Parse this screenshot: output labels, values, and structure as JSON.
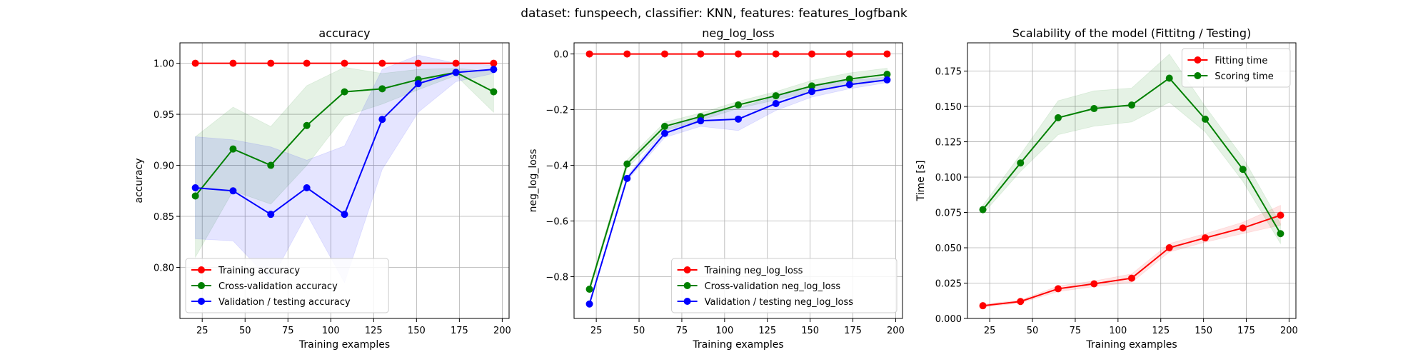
{
  "figure": {
    "suptitle": "dataset: funspeech, classifier: KNN, features: features_logfbank"
  },
  "chart_data": [
    {
      "type": "line",
      "title": "accuracy",
      "xlabel": "Training examples",
      "ylabel": "accuracy",
      "xlim": [
        12,
        204
      ],
      "ylim": [
        0.75,
        1.02
      ],
      "xticks": [
        "25",
        "50",
        "75",
        "100",
        "125",
        "150",
        "175",
        "200"
      ],
      "yticks": [
        "0.80",
        "0.85",
        "0.90",
        "0.95",
        "1.00"
      ],
      "grid": true,
      "legend_position": "lower-left",
      "x": [
        21,
        43,
        65,
        86,
        108,
        130,
        151,
        173,
        195
      ],
      "series": [
        {
          "name": "Training accuracy",
          "color": "#ff0000",
          "values": [
            1.0,
            1.0,
            1.0,
            1.0,
            1.0,
            1.0,
            1.0,
            1.0,
            1.0
          ],
          "band_lower": [
            1.0,
            1.0,
            1.0,
            1.0,
            1.0,
            1.0,
            1.0,
            1.0,
            1.0
          ],
          "band_upper": [
            1.0,
            1.0,
            1.0,
            1.0,
            1.0,
            1.0,
            1.0,
            1.0,
            1.0
          ]
        },
        {
          "name": "Cross-validation accuracy",
          "color": "#008000",
          "values": [
            0.87,
            0.916,
            0.9,
            0.939,
            0.972,
            0.975,
            0.984,
            0.991,
            0.972
          ],
          "band_lower": [
            0.81,
            0.875,
            0.862,
            0.9,
            0.948,
            0.96,
            0.974,
            0.988,
            0.952
          ],
          "band_upper": [
            0.928,
            0.957,
            0.938,
            0.978,
            0.996,
            0.99,
            0.994,
            0.995,
            0.992
          ]
        },
        {
          "name": "Validation / testing accuracy",
          "color": "#0000ff",
          "values": [
            0.878,
            0.875,
            0.852,
            0.878,
            0.852,
            0.945,
            0.98,
            0.991,
            0.994
          ],
          "band_lower": [
            0.828,
            0.826,
            0.787,
            0.852,
            0.785,
            0.896,
            0.952,
            0.982,
            0.99
          ],
          "band_upper": [
            0.928,
            0.925,
            0.918,
            0.905,
            0.919,
            0.994,
            1.008,
            1.0,
            0.998
          ]
        }
      ]
    },
    {
      "type": "line",
      "title": "neg_log_loss",
      "xlabel": "Training examples",
      "ylabel": "neg_log_loss",
      "xlim": [
        12,
        204
      ],
      "ylim": [
        -0.95,
        0.04
      ],
      "xticks": [
        "25",
        "50",
        "75",
        "100",
        "125",
        "150",
        "175",
        "200"
      ],
      "yticks": [
        "−0.8",
        "−0.6",
        "−0.4",
        "−0.2",
        "0.0"
      ],
      "grid": true,
      "legend_position": "lower-right",
      "x": [
        21,
        43,
        65,
        86,
        108,
        130,
        151,
        173,
        195
      ],
      "series": [
        {
          "name": "Training neg_log_loss",
          "color": "#ff0000",
          "values": [
            0.0,
            0.0,
            0.0,
            0.0,
            0.0,
            0.0,
            0.0,
            0.0,
            0.0
          ],
          "band_lower": [
            0.0,
            0.0,
            0.0,
            0.0,
            0.0,
            0.0,
            0.0,
            0.0,
            0.0
          ],
          "band_upper": [
            0.0,
            0.0,
            0.0,
            0.0,
            0.0,
            0.0,
            0.0,
            0.0,
            0.0
          ]
        },
        {
          "name": "Cross-validation neg_log_loss",
          "color": "#008000",
          "values": [
            -0.845,
            -0.395,
            -0.26,
            -0.225,
            -0.183,
            -0.15,
            -0.115,
            -0.09,
            -0.073
          ],
          "band_lower": [
            -0.855,
            -0.41,
            -0.275,
            -0.238,
            -0.196,
            -0.165,
            -0.135,
            -0.112,
            -0.095
          ],
          "band_upper": [
            -0.835,
            -0.38,
            -0.245,
            -0.212,
            -0.17,
            -0.135,
            -0.095,
            -0.068,
            -0.051
          ]
        },
        {
          "name": "Validation / testing neg_log_loss",
          "color": "#0000ff",
          "values": [
            -0.898,
            -0.447,
            -0.285,
            -0.24,
            -0.234,
            -0.178,
            -0.135,
            -0.11,
            -0.093
          ],
          "band_lower": [
            -0.903,
            -0.455,
            -0.3,
            -0.26,
            -0.275,
            -0.203,
            -0.155,
            -0.125,
            -0.103
          ],
          "band_upper": [
            -0.893,
            -0.439,
            -0.27,
            -0.22,
            -0.193,
            -0.153,
            -0.115,
            -0.095,
            -0.083
          ]
        }
      ]
    },
    {
      "type": "line",
      "title": "Scalability of the model (Fittitng / Testing)",
      "xlabel": "Training examples",
      "ylabel": "Time [s]",
      "xlim": [
        12,
        204
      ],
      "ylim": [
        0,
        0.195
      ],
      "xticks": [
        "25",
        "50",
        "75",
        "100",
        "125",
        "150",
        "175",
        "200"
      ],
      "yticks": [
        "0.000",
        "0.025",
        "0.050",
        "0.075",
        "0.100",
        "0.125",
        "0.150",
        "0.175"
      ],
      "grid": true,
      "legend_position": "top-right",
      "x": [
        21,
        43,
        65,
        86,
        108,
        130,
        151,
        173,
        195
      ],
      "series": [
        {
          "name": "Fitting time",
          "color": "#ff0000",
          "values": [
            0.009,
            0.012,
            0.021,
            0.0245,
            0.0285,
            0.05,
            0.057,
            0.064,
            0.073
          ],
          "band_lower": [
            0.008,
            0.011,
            0.019,
            0.0225,
            0.0255,
            0.047,
            0.054,
            0.06,
            0.066
          ],
          "band_upper": [
            0.01,
            0.013,
            0.023,
            0.0265,
            0.0315,
            0.053,
            0.06,
            0.068,
            0.08
          ]
        },
        {
          "name": "Scoring time",
          "color": "#008000",
          "values": [
            0.077,
            0.11,
            0.142,
            0.1485,
            0.151,
            0.17,
            0.141,
            0.1055,
            0.06
          ],
          "band_lower": [
            0.074,
            0.104,
            0.13,
            0.136,
            0.139,
            0.153,
            0.132,
            0.097,
            0.053
          ],
          "band_upper": [
            0.08,
            0.116,
            0.154,
            0.161,
            0.163,
            0.187,
            0.15,
            0.114,
            0.067
          ]
        }
      ]
    }
  ]
}
